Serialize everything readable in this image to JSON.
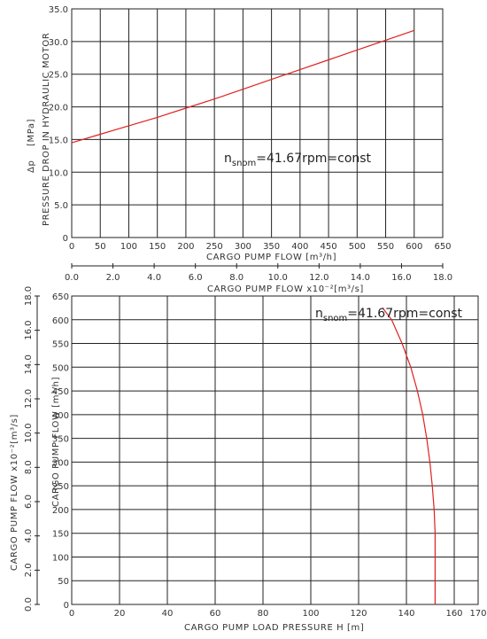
{
  "chart_data": [
    {
      "type": "line",
      "xlabel": "CARGO PUMP FLOW [m³/h]",
      "xlabel2": "CARGO PUMP FLOW x10⁻²[m³/s]",
      "ylabel": "PRESSURE DROP IN HYDRAULIC MOTOR",
      "ylabel_sym": "Δp",
      "ylabel_unit": "[MPa]",
      "xlim": [
        0,
        650
      ],
      "x2lim": [
        0,
        18
      ],
      "ylim": [
        0,
        35
      ],
      "xticks": [
        "0",
        "50",
        "100",
        "150",
        "200",
        "250",
        "300",
        "350",
        "400",
        "450",
        "500",
        "550",
        "600",
        "650"
      ],
      "x2ticks": [
        "0.0",
        "2.0",
        "4.0",
        "6.0",
        "8.0",
        "10.0",
        "12.0",
        "14.0",
        "16.0",
        "18.0"
      ],
      "yticks": [
        "0",
        "5.0",
        "10.0",
        "15.0",
        "20.0",
        "25.0",
        "30.0",
        "35.0"
      ],
      "annotation": {
        "prefix": "n",
        "sub": "snom",
        "rest": "=41.67rpm=const"
      },
      "grid": true,
      "series": [
        {
          "color": "#e02020",
          "x": [
            0,
            50,
            100,
            150,
            200,
            250,
            300,
            350,
            400,
            450,
            500,
            550,
            600
          ],
          "y": [
            14.5,
            15.8,
            17.1,
            18.4,
            19.8,
            21.2,
            22.7,
            24.2,
            25.7,
            27.2,
            28.7,
            30.2,
            31.7
          ]
        }
      ]
    },
    {
      "type": "line",
      "xlabel": "CARGO PUMP LOAD PRESSURE H [m]",
      "ylabel": "CARGO PUMP FLOW [m³/h]",
      "ylabel2": "CARGO PUMP FLOW x10⁻²[m³/s]",
      "xlim": [
        0,
        170
      ],
      "ylim": [
        0,
        650
      ],
      "y2lim": [
        0,
        18
      ],
      "xticks": [
        "0",
        "20",
        "40",
        "60",
        "80",
        "100",
        "120",
        "140",
        "160",
        "170"
      ],
      "yticks": [
        "0",
        "50",
        "100",
        "150",
        "200",
        "250",
        "300",
        "350",
        "400",
        "450",
        "500",
        "550",
        "600",
        "650"
      ],
      "y2ticks": [
        "0.0",
        "2.0",
        "4.0",
        "6.0",
        "8.0",
        "10.0",
        "12.0",
        "14.0",
        "16.0",
        "18.0"
      ],
      "annotation": {
        "prefix": "n",
        "sub": "snom",
        "rest": "=41.67rpm=const"
      },
      "grid": true,
      "series": [
        {
          "color": "#e02020",
          "x": [
            152,
            152,
            152,
            152,
            151.6,
            150.8,
            149.8,
            148.5,
            146.8,
            144.6,
            141.8,
            138.2,
            133.8,
            130
          ],
          "y": [
            0,
            50,
            100,
            150,
            200,
            250,
            300,
            350,
            400,
            450,
            500,
            550,
            600,
            625
          ]
        }
      ]
    }
  ]
}
